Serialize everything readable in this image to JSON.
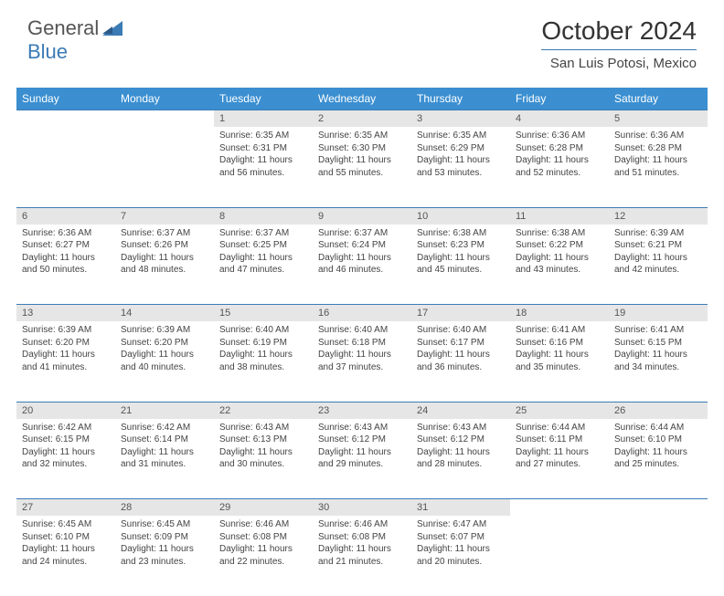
{
  "logo": {
    "first": "General",
    "second": "Blue"
  },
  "title": "October 2024",
  "subtitle": "San Luis Potosi, Mexico",
  "colors": {
    "header_bg": "#3b8fd1",
    "divider": "#3b7bb5",
    "day_bg": "#e6e6e6",
    "text": "#444444"
  },
  "weekdays": [
    "Sunday",
    "Monday",
    "Tuesday",
    "Wednesday",
    "Thursday",
    "Friday",
    "Saturday"
  ],
  "weeks": [
    [
      null,
      null,
      {
        "n": "1",
        "sr": "6:35 AM",
        "ss": "6:31 PM",
        "dl": "11 hours and 56 minutes."
      },
      {
        "n": "2",
        "sr": "6:35 AM",
        "ss": "6:30 PM",
        "dl": "11 hours and 55 minutes."
      },
      {
        "n": "3",
        "sr": "6:35 AM",
        "ss": "6:29 PM",
        "dl": "11 hours and 53 minutes."
      },
      {
        "n": "4",
        "sr": "6:36 AM",
        "ss": "6:28 PM",
        "dl": "11 hours and 52 minutes."
      },
      {
        "n": "5",
        "sr": "6:36 AM",
        "ss": "6:28 PM",
        "dl": "11 hours and 51 minutes."
      }
    ],
    [
      {
        "n": "6",
        "sr": "6:36 AM",
        "ss": "6:27 PM",
        "dl": "11 hours and 50 minutes."
      },
      {
        "n": "7",
        "sr": "6:37 AM",
        "ss": "6:26 PM",
        "dl": "11 hours and 48 minutes."
      },
      {
        "n": "8",
        "sr": "6:37 AM",
        "ss": "6:25 PM",
        "dl": "11 hours and 47 minutes."
      },
      {
        "n": "9",
        "sr": "6:37 AM",
        "ss": "6:24 PM",
        "dl": "11 hours and 46 minutes."
      },
      {
        "n": "10",
        "sr": "6:38 AM",
        "ss": "6:23 PM",
        "dl": "11 hours and 45 minutes."
      },
      {
        "n": "11",
        "sr": "6:38 AM",
        "ss": "6:22 PM",
        "dl": "11 hours and 43 minutes."
      },
      {
        "n": "12",
        "sr": "6:39 AM",
        "ss": "6:21 PM",
        "dl": "11 hours and 42 minutes."
      }
    ],
    [
      {
        "n": "13",
        "sr": "6:39 AM",
        "ss": "6:20 PM",
        "dl": "11 hours and 41 minutes."
      },
      {
        "n": "14",
        "sr": "6:39 AM",
        "ss": "6:20 PM",
        "dl": "11 hours and 40 minutes."
      },
      {
        "n": "15",
        "sr": "6:40 AM",
        "ss": "6:19 PM",
        "dl": "11 hours and 38 minutes."
      },
      {
        "n": "16",
        "sr": "6:40 AM",
        "ss": "6:18 PM",
        "dl": "11 hours and 37 minutes."
      },
      {
        "n": "17",
        "sr": "6:40 AM",
        "ss": "6:17 PM",
        "dl": "11 hours and 36 minutes."
      },
      {
        "n": "18",
        "sr": "6:41 AM",
        "ss": "6:16 PM",
        "dl": "11 hours and 35 minutes."
      },
      {
        "n": "19",
        "sr": "6:41 AM",
        "ss": "6:15 PM",
        "dl": "11 hours and 34 minutes."
      }
    ],
    [
      {
        "n": "20",
        "sr": "6:42 AM",
        "ss": "6:15 PM",
        "dl": "11 hours and 32 minutes."
      },
      {
        "n": "21",
        "sr": "6:42 AM",
        "ss": "6:14 PM",
        "dl": "11 hours and 31 minutes."
      },
      {
        "n": "22",
        "sr": "6:43 AM",
        "ss": "6:13 PM",
        "dl": "11 hours and 30 minutes."
      },
      {
        "n": "23",
        "sr": "6:43 AM",
        "ss": "6:12 PM",
        "dl": "11 hours and 29 minutes."
      },
      {
        "n": "24",
        "sr": "6:43 AM",
        "ss": "6:12 PM",
        "dl": "11 hours and 28 minutes."
      },
      {
        "n": "25",
        "sr": "6:44 AM",
        "ss": "6:11 PM",
        "dl": "11 hours and 27 minutes."
      },
      {
        "n": "26",
        "sr": "6:44 AM",
        "ss": "6:10 PM",
        "dl": "11 hours and 25 minutes."
      }
    ],
    [
      {
        "n": "27",
        "sr": "6:45 AM",
        "ss": "6:10 PM",
        "dl": "11 hours and 24 minutes."
      },
      {
        "n": "28",
        "sr": "6:45 AM",
        "ss": "6:09 PM",
        "dl": "11 hours and 23 minutes."
      },
      {
        "n": "29",
        "sr": "6:46 AM",
        "ss": "6:08 PM",
        "dl": "11 hours and 22 minutes."
      },
      {
        "n": "30",
        "sr": "6:46 AM",
        "ss": "6:08 PM",
        "dl": "11 hours and 21 minutes."
      },
      {
        "n": "31",
        "sr": "6:47 AM",
        "ss": "6:07 PM",
        "dl": "11 hours and 20 minutes."
      },
      null,
      null
    ]
  ]
}
